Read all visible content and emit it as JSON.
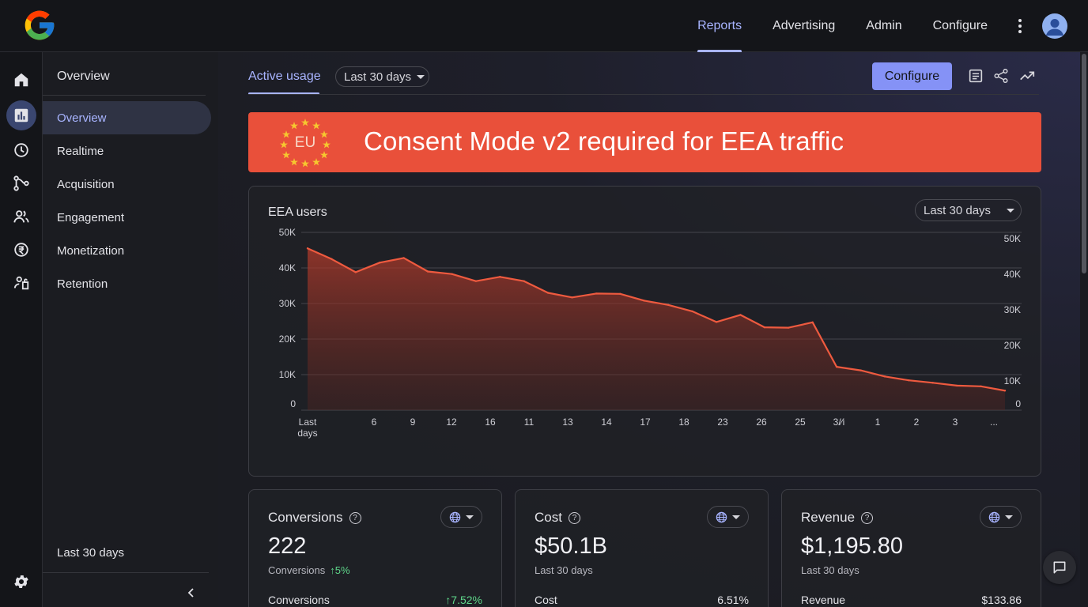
{
  "colors": {
    "accent": "#a8b4ff",
    "banner": "#e9503a",
    "line": "#ee5a3f",
    "positive": "#5fd68a",
    "button": "#8592f6"
  },
  "topnav": {
    "items": [
      {
        "label": "Reports",
        "active": true
      },
      {
        "label": "Advertising",
        "active": false
      },
      {
        "label": "Admin",
        "active": false
      },
      {
        "label": "Configure",
        "active": false
      }
    ]
  },
  "rail": {
    "icons": [
      "home-icon",
      "reports-icon",
      "realtime-icon",
      "acquisition-icon",
      "engagement-icon",
      "monetization-icon",
      "retention-icon",
      "settings-icon"
    ]
  },
  "sidebar": {
    "title": "Overview",
    "items": [
      {
        "label": "Overview",
        "active": true
      },
      {
        "label": "Realtime"
      },
      {
        "label": "Acquisition"
      },
      {
        "label": "Engagement"
      },
      {
        "label": "Monetization"
      },
      {
        "label": "Retention"
      }
    ],
    "footer": "Last 30 days"
  },
  "header": {
    "tab": "Active usage",
    "date_range": "Last 30 days",
    "configure_label": "Configure"
  },
  "banner": {
    "badge": "EU",
    "text": "Consent Mode v2 required for EEA traffic"
  },
  "chart_card": {
    "title": "EEA users",
    "date_range": "Last 30 days"
  },
  "chart_data": {
    "type": "area",
    "title": "EEA users",
    "xlabel": "",
    "ylabel": "",
    "x_tick_labels": [
      "Last days",
      "6",
      "9",
      "12",
      "16",
      "11",
      "13",
      "14",
      "17",
      "18",
      "23",
      "26",
      "25",
      "3/∕i",
      "1",
      "2",
      "3",
      "..."
    ],
    "y_ticks_left": [
      "0",
      "10K",
      "20K",
      "30K",
      "40K",
      "50K"
    ],
    "y_ticks_right": [
      "0",
      "10K",
      "20K",
      "30K",
      "40K",
      "50K"
    ],
    "ylim": [
      0,
      50000
    ],
    "series": [
      {
        "values": [
          45500,
          42500,
          38800,
          41500,
          42800,
          39000,
          38300,
          36300,
          37500,
          36300,
          33000,
          31700,
          32800,
          32700,
          30800,
          29600,
          27800,
          24800,
          26800,
          23300,
          23200,
          24700,
          12200,
          11200,
          9500,
          8400,
          7700,
          6900,
          6700,
          5500
        ]
      }
    ],
    "grid": true,
    "legend": "none"
  },
  "metrics": [
    {
      "title": "Conversions",
      "value": "222",
      "sub": "Conversions",
      "change": "↑5%",
      "row_label": "Conversions",
      "row_value": "↑7.52%",
      "row_positive": true
    },
    {
      "title": "Cost",
      "value": "$50.1B",
      "sub": "Last 30 days",
      "change": "",
      "row_label": "Cost",
      "row_value": "6.51%",
      "row_positive": false
    },
    {
      "title": "Revenue",
      "value": "$1,195.80",
      "sub": "Last 30 days",
      "change": "",
      "row_label": "Revenue",
      "row_value": "$133.86",
      "row_positive": false
    }
  ]
}
